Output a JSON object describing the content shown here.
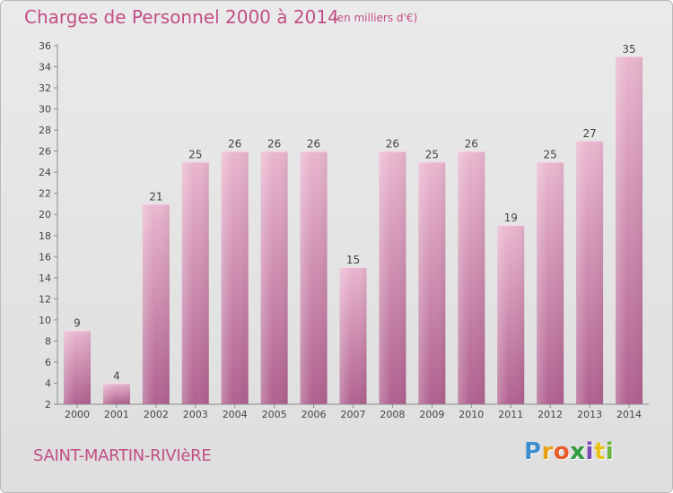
{
  "title": "Charges de Personnel 2000 à 2014",
  "subtitle": "(en milliers d'€)",
  "commune": "SAINT-MARTIN-RIVIèRE",
  "brand": {
    "letters": [
      "P",
      "r",
      "o",
      "x",
      "i",
      "t",
      "i"
    ],
    "colors": [
      "#3d8fd0",
      "#e8a21a",
      "#e85d2a",
      "#2f9c3c",
      "#7a49b5",
      "#e8c21a",
      "#6cb33e"
    ]
  },
  "colors": {
    "accent": "#c24f84",
    "bar_light": "#eab7cf",
    "bar_dark": "#b0618f"
  },
  "chart_data": {
    "type": "bar",
    "title": "Charges de Personnel 2000 à 2014",
    "subtitle": "(en milliers d'€)",
    "categories": [
      "2000",
      "2001",
      "2002",
      "2003",
      "2004",
      "2005",
      "2006",
      "2007",
      "2008",
      "2009",
      "2010",
      "2011",
      "2012",
      "2013",
      "2014"
    ],
    "values": [
      9,
      4,
      21,
      25,
      26,
      26,
      26,
      15,
      26,
      25,
      26,
      19,
      25,
      27,
      35
    ],
    "ylim": [
      2,
      36
    ],
    "yticks": [
      2,
      4,
      6,
      8,
      10,
      12,
      14,
      16,
      18,
      20,
      22,
      24,
      26,
      28,
      30,
      32,
      34,
      36
    ],
    "grid": false,
    "legend": "none"
  }
}
